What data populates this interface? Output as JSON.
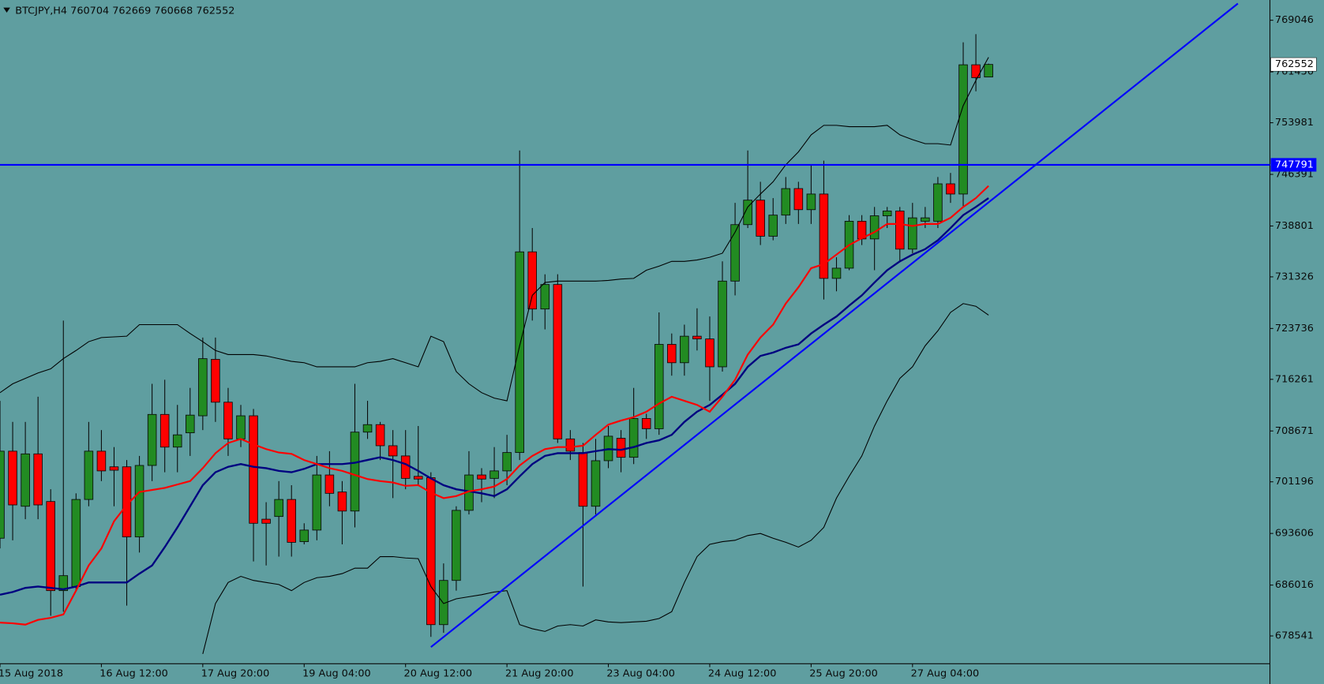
{
  "chart_data": {
    "type": "candlestick",
    "title": "BTCJPY,H4  760704 762669 760668 762552",
    "categories": [
      "15 Aug 2018",
      null,
      null,
      null,
      null,
      null,
      null,
      null,
      "16 Aug 12:00",
      null,
      null,
      null,
      null,
      null,
      null,
      null,
      "17 Aug 20:00",
      null,
      null,
      null,
      null,
      null,
      null,
      null,
      "19 Aug 04:00",
      null,
      null,
      null,
      null,
      null,
      null,
      null,
      "20 Aug 12:00",
      null,
      null,
      null,
      null,
      null,
      null,
      null,
      "21 Aug 20:00",
      null,
      null,
      null,
      null,
      null,
      null,
      null,
      "23 Aug 04:00",
      null,
      null,
      null,
      null,
      null,
      null,
      null,
      "24 Aug 12:00",
      null,
      null,
      null,
      null,
      null,
      null,
      null,
      "25 Aug 20:00",
      null,
      null,
      null,
      null,
      null,
      null,
      null,
      "27 Aug 04:00",
      null,
      null,
      null,
      null,
      null,
      null
    ],
    "open": [
      692900,
      705700,
      697600,
      705300,
      698300,
      685200,
      685800,
      698600,
      705700,
      703400,
      703400,
      693100,
      703600,
      711100,
      706300,
      708400,
      710900,
      719200,
      712900,
      707500,
      710900,
      695700,
      696100,
      698600,
      692400,
      694100,
      702200,
      699700,
      696900,
      708500,
      709600,
      706500,
      705000,
      702000,
      701800,
      680200,
      686700,
      697000,
      702200,
      701700,
      702800,
      705500,
      735000,
      726600,
      730200,
      707500,
      705500,
      697600,
      704300,
      707600,
      704800,
      710500,
      709000,
      721400,
      718700,
      722600,
      722200,
      718100,
      730700,
      739000,
      742600,
      737300,
      740400,
      744300,
      741200,
      743500,
      731100,
      732600,
      739500,
      736900,
      740300,
      741000,
      735400,
      739500,
      739500,
      745000,
      743500,
      762500,
      760704
    ],
    "high": [
      713100,
      710000,
      710000,
      713700,
      700100,
      724900,
      699500,
      710000,
      708800,
      706300,
      704400,
      705000,
      715600,
      716200,
      712500,
      715000,
      722400,
      722400,
      715000,
      712500,
      711900,
      698200,
      701300,
      700700,
      695100,
      705000,
      705700,
      701300,
      715600,
      713100,
      710000,
      708800,
      708800,
      709400,
      702600,
      689200,
      697600,
      705700,
      703200,
      706300,
      708100,
      749900,
      738500,
      731700,
      731700,
      708800,
      706900,
      707500,
      709400,
      708800,
      715000,
      711200,
      726100,
      723000,
      724300,
      726700,
      725500,
      733600,
      742200,
      749900,
      745300,
      742900,
      746000,
      745300,
      747800,
      748400,
      734200,
      740400,
      740400,
      741600,
      741600,
      741600,
      742200,
      741600,
      746000,
      746600,
      765800,
      767000,
      762669
    ],
    "low": [
      691400,
      692600,
      695700,
      695700,
      681500,
      682100,
      685200,
      697600,
      701300,
      697600,
      683000,
      690800,
      701300,
      702600,
      702600,
      705000,
      708800,
      710000,
      705000,
      706300,
      689500,
      688900,
      690200,
      690200,
      692000,
      692600,
      697600,
      692000,
      694500,
      707500,
      704400,
      698800,
      700100,
      700700,
      678400,
      679000,
      685200,
      696400,
      698200,
      698800,
      700700,
      704400,
      724900,
      723600,
      706900,
      704400,
      685800,
      696400,
      703200,
      702600,
      703800,
      707500,
      708100,
      716800,
      716800,
      720500,
      713100,
      717400,
      728600,
      738500,
      736000,
      736700,
      739100,
      739100,
      739100,
      728000,
      729200,
      732300,
      736000,
      732300,
      738500,
      733600,
      734800,
      738500,
      738500,
      742200,
      741600,
      758600,
      760668
    ],
    "close": [
      705700,
      697800,
      705300,
      697800,
      685200,
      687400,
      698600,
      705700,
      702800,
      702900,
      693100,
      703600,
      711100,
      706300,
      708100,
      711000,
      719300,
      712900,
      707500,
      710900,
      695100,
      695100,
      698600,
      692300,
      694100,
      702200,
      699500,
      696900,
      708500,
      709600,
      706500,
      705000,
      701700,
      701600,
      680200,
      686700,
      697000,
      702200,
      701600,
      702800,
      705500,
      735000,
      726600,
      730200,
      707500,
      705700,
      697600,
      704300,
      707900,
      704800,
      710500,
      709000,
      721400,
      718700,
      722600,
      722200,
      718100,
      730700,
      739000,
      742600,
      737300,
      740400,
      744300,
      741200,
      743500,
      731100,
      732600,
      739500,
      736900,
      740300,
      741000,
      735400,
      740000,
      740000,
      745000,
      743500,
      762500,
      760600,
      762552
    ],
    "up_color": "#228b22",
    "down_color": "#ff0000",
    "indicators": [
      {
        "color": "#000000",
        "width": 1,
        "values": [
          714300,
          715600,
          716400,
          717200,
          717800,
          719300,
          720500,
          721800,
          722400,
          722500,
          722600,
          724300,
          724300,
          724300,
          724300,
          723000,
          721800,
          720500,
          719900,
          719900,
          719900,
          719700,
          719300,
          718900,
          718700,
          718100,
          718100,
          718100,
          718100,
          718700,
          718900,
          719300,
          718700,
          718100,
          722600,
          721800,
          717400,
          715600,
          714300,
          713500,
          713100,
          721200,
          728600,
          730500,
          730700,
          730700,
          730700,
          730700,
          730800,
          731000,
          731100,
          732300,
          732900,
          733600,
          733600,
          733800,
          734200,
          734800,
          737900,
          741600,
          743500,
          745300,
          747800,
          749700,
          752200,
          753600,
          753600,
          753400,
          753400,
          753400,
          753600,
          752200,
          751500,
          750900,
          750900,
          750700,
          756500,
          760200,
          763600
        ]
      },
      {
        "color": "#000000",
        "width": 1,
        "values": [
          null,
          null,
          null,
          null,
          null,
          null,
          null,
          null,
          null,
          null,
          null,
          null,
          null,
          null,
          null,
          null,
          675900,
          683300,
          686400,
          687300,
          686700,
          686400,
          686100,
          685200,
          686400,
          687100,
          687300,
          687700,
          688500,
          688500,
          690200,
          690200,
          690000,
          689900,
          685800,
          683300,
          684000,
          684300,
          684600,
          685000,
          685200,
          680200,
          679600,
          679200,
          680000,
          680200,
          680000,
          680900,
          680600,
          680500,
          680600,
          680700,
          681100,
          682100,
          686400,
          690200,
          692000,
          692400,
          692600,
          693300,
          693600,
          692900,
          692300,
          691600,
          692600,
          694500,
          698800,
          702000,
          705000,
          709400,
          713100,
          716400,
          718100,
          721200,
          723400,
          726100,
          727400,
          727000,
          725700
        ]
      },
      {
        "color": "#000080",
        "width": 2.2,
        "values": [
          684600,
          685000,
          685600,
          685800,
          685600,
          685400,
          685800,
          686400,
          686400,
          686400,
          686400,
          687700,
          688900,
          691600,
          694500,
          697600,
          700700,
          702600,
          703400,
          703800,
          703400,
          703200,
          702800,
          702600,
          703100,
          703800,
          703800,
          703800,
          704000,
          704400,
          704800,
          704400,
          703800,
          702800,
          701700,
          700700,
          700100,
          699800,
          699500,
          699100,
          700100,
          702000,
          703800,
          705000,
          705400,
          705400,
          705400,
          705700,
          706000,
          705900,
          706300,
          706900,
          707300,
          708100,
          710000,
          711500,
          712500,
          714000,
          715600,
          718100,
          719700,
          720200,
          720900,
          721400,
          723000,
          724300,
          725500,
          727100,
          728600,
          730500,
          732300,
          733600,
          734600,
          735400,
          736700,
          738500,
          740400,
          741600,
          742900
        ]
      },
      {
        "color": "#ff0000",
        "width": 2,
        "values": [
          680500,
          680400,
          680200,
          680900,
          681200,
          681700,
          685200,
          688900,
          691400,
          695400,
          697800,
          699700,
          700000,
          700300,
          700800,
          701300,
          703200,
          705400,
          706900,
          707500,
          706700,
          706000,
          705500,
          705300,
          704400,
          703800,
          703200,
          702800,
          702200,
          701600,
          701300,
          701100,
          700600,
          700700,
          699600,
          698800,
          699100,
          699800,
          700100,
          700500,
          701600,
          703600,
          705000,
          706000,
          706300,
          706300,
          706500,
          708100,
          709600,
          710200,
          710700,
          711500,
          712700,
          713700,
          713100,
          712500,
          711500,
          713700,
          716200,
          719900,
          722400,
          724300,
          727400,
          729800,
          732600,
          733200,
          734600,
          736000,
          737000,
          737900,
          739100,
          739100,
          738800,
          739100,
          739100,
          740000,
          741600,
          742900,
          744700
        ]
      }
    ],
    "hline": {
      "value": 747791,
      "color": "#0000ff"
    },
    "trendline": {
      "x": [
        34,
        97.67
      ],
      "y": [
        676900,
        771500
      ],
      "color": "#0000ff"
    },
    "ylim": [
      674449,
      772022
    ],
    "yticks": [
      769046,
      761456,
      753981,
      746391,
      738801,
      731326,
      723736,
      716261,
      708671,
      701196,
      693606,
      686016,
      678541
    ]
  }
}
